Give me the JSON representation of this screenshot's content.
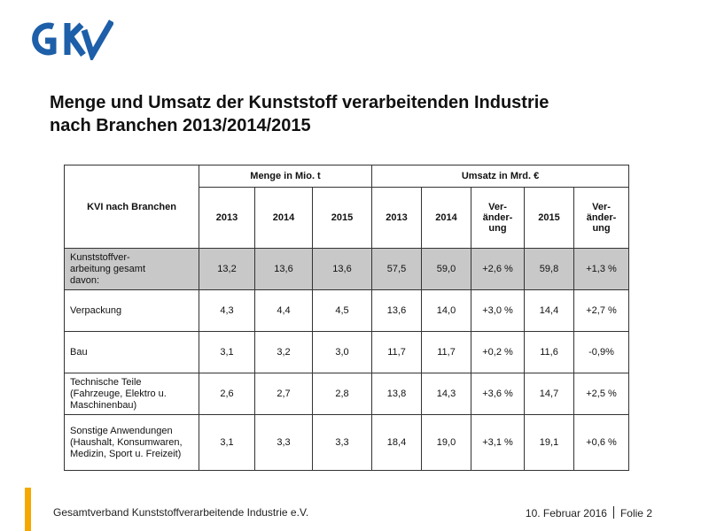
{
  "logo": {
    "text": "GKV",
    "color": "#1d5fa8"
  },
  "title": {
    "line1": "Menge und Umsatz der Kunststoff verarbeitenden Industrie",
    "line2": "nach Branchen 2013/2014/2015"
  },
  "table": {
    "branch_header": "KVI nach Branchen",
    "group_menge": "Menge in Mio. t",
    "group_umsatz": "Umsatz in Mrd. €",
    "col_headers": [
      "2013",
      "2014",
      "2015",
      "2013",
      "2014",
      "Ver-\nänder-\nung",
      "2015",
      "Ver-\nänder-\nung"
    ],
    "rows": [
      {
        "label": "Kunststoffver-\narbeitung gesamt\ndavon:",
        "values": [
          "13,2",
          "13,6",
          "13,6",
          "57,5",
          "59,0",
          "+2,6 %",
          "59,8",
          "+1,3 %"
        ]
      },
      {
        "label": "Verpackung",
        "values": [
          "4,3",
          "4,4",
          "4,5",
          "13,6",
          "14,0",
          "+3,0 %",
          "14,4",
          "+2,7 %"
        ]
      },
      {
        "label": "Bau",
        "values": [
          "3,1",
          "3,2",
          "3,0",
          "11,7",
          "11,7",
          "+0,2 %",
          "11,6",
          "-0,9%"
        ]
      },
      {
        "label": "Technische Teile\n(Fahrzeuge, Elektro u.\nMaschinenbau)",
        "values": [
          "2,6",
          "2,7",
          "2,8",
          "13,8",
          "14,3",
          "+3,6 %",
          "14,7",
          "+2,5 %"
        ]
      },
      {
        "label": "Sonstige Anwendungen\n(Haushalt, Konsumwaren,\nMedizin, Sport u. Freizeit)",
        "values": [
          "3,1",
          "3,3",
          "3,3",
          "18,4",
          "19,0",
          "+3,1 %",
          "19,1",
          "+0,6 %"
        ]
      }
    ]
  },
  "footer": {
    "org": "Gesamtverband Kunststoffverarbeitende Industrie e.V.",
    "date": "10. Februar 2016",
    "slide": "Folie 2"
  },
  "colors": {
    "accent_bar": "#f5a800",
    "total_row_bg": "#c8c8c8",
    "logo_blue": "#1d5fa8"
  }
}
